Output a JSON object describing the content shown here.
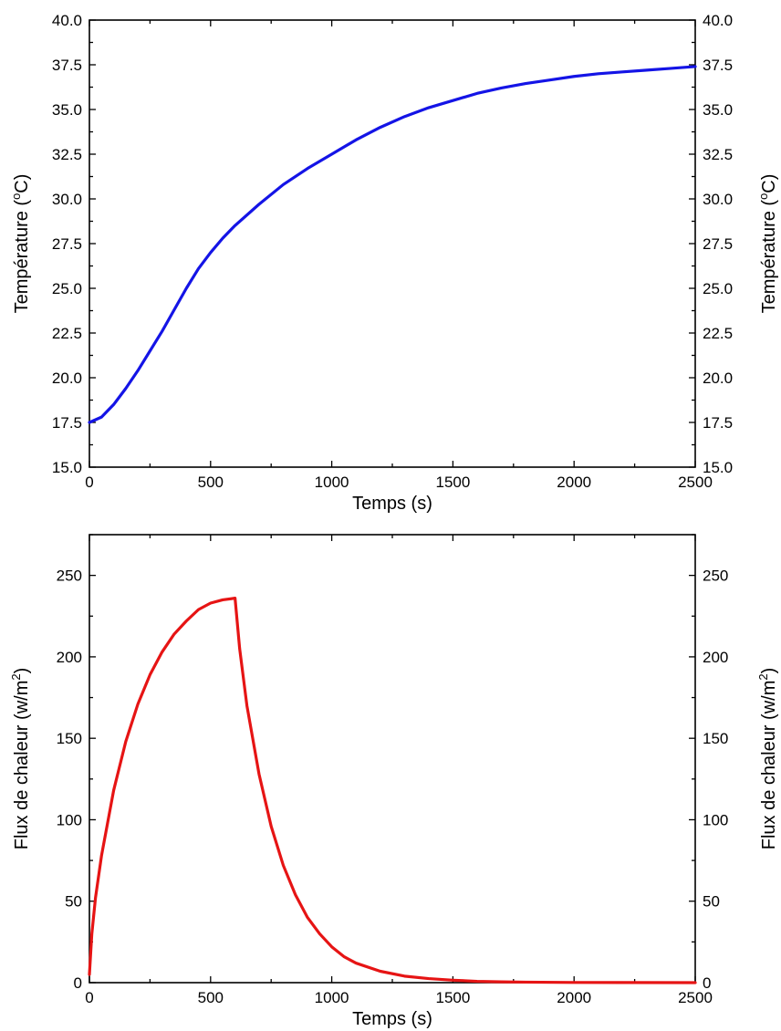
{
  "chart_data": [
    {
      "type": "line",
      "title": "",
      "xlabel": "Temps (s)",
      "ylabel": "Température (°C)",
      "ylabel_parts": [
        "Température (",
        "o",
        "C)"
      ],
      "ylabel_right": true,
      "xlim": [
        0,
        2500
      ],
      "ylim": [
        15.0,
        40.0
      ],
      "xticks": [
        0,
        500,
        1000,
        1500,
        2000,
        2500
      ],
      "yticks": [
        15.0,
        17.5,
        20.0,
        22.5,
        25.0,
        27.5,
        30.0,
        32.5,
        35.0,
        37.5,
        40.0
      ],
      "xtick_labels": [
        "0",
        "500",
        "1000",
        "1500",
        "2000",
        "2500"
      ],
      "ytick_labels": [
        "15.0",
        "17.5",
        "20.0",
        "22.5",
        "25.0",
        "27.5",
        "30.0",
        "32.5",
        "35.0",
        "37.5",
        "40.0"
      ],
      "grid": false,
      "color": "#1414e6",
      "series": [
        {
          "x": [
            0,
            50,
            100,
            150,
            200,
            250,
            300,
            350,
            400,
            450,
            500,
            550,
            600,
            700,
            800,
            900,
            1000,
            1100,
            1200,
            1300,
            1400,
            1500,
            1600,
            1700,
            1800,
            1900,
            2000,
            2100,
            2200,
            2300,
            2400,
            2500
          ],
          "y": [
            17.5,
            17.8,
            18.5,
            19.4,
            20.4,
            21.5,
            22.6,
            23.8,
            25.0,
            26.1,
            27.0,
            27.8,
            28.5,
            29.7,
            30.8,
            31.7,
            32.5,
            33.3,
            34.0,
            34.6,
            35.1,
            35.5,
            35.9,
            36.2,
            36.45,
            36.65,
            36.85,
            37.0,
            37.1,
            37.2,
            37.3,
            37.4
          ]
        }
      ]
    },
    {
      "type": "line",
      "title": "",
      "xlabel": "Temps (s)",
      "ylabel": "Flux de chaleur (w/m²)",
      "ylabel_parts": [
        "Flux de chaleur (w/m",
        "2",
        ")"
      ],
      "ylabel_right": true,
      "xlim": [
        0,
        2500
      ],
      "ylim": [
        0,
        275
      ],
      "xticks": [
        0,
        500,
        1000,
        1500,
        2000,
        2500
      ],
      "yticks": [
        0,
        50,
        100,
        150,
        200,
        250
      ],
      "xtick_labels": [
        "0",
        "500",
        "1000",
        "1500",
        "2000",
        "2500"
      ],
      "ytick_labels": [
        "0",
        "50",
        "100",
        "150",
        "200",
        "250"
      ],
      "grid": false,
      "color": "#e61414",
      "series": [
        {
          "x": [
            0,
            10,
            25,
            50,
            100,
            150,
            200,
            250,
            300,
            350,
            400,
            450,
            500,
            550,
            600,
            601,
            620,
            650,
            700,
            750,
            800,
            850,
            900,
            950,
            1000,
            1050,
            1100,
            1200,
            1300,
            1400,
            1500,
            1600,
            1700,
            1800,
            2000,
            2200,
            2500
          ],
          "y": [
            5,
            30,
            52,
            78,
            118,
            148,
            171,
            189,
            203,
            214,
            222,
            229,
            233,
            235,
            236,
            236,
            205,
            170,
            128,
            96,
            72,
            54,
            40,
            30,
            22,
            16,
            12,
            7,
            4,
            2.5,
            1.5,
            0.8,
            0.5,
            0.3,
            0.1,
            0.05,
            0
          ]
        }
      ]
    }
  ]
}
